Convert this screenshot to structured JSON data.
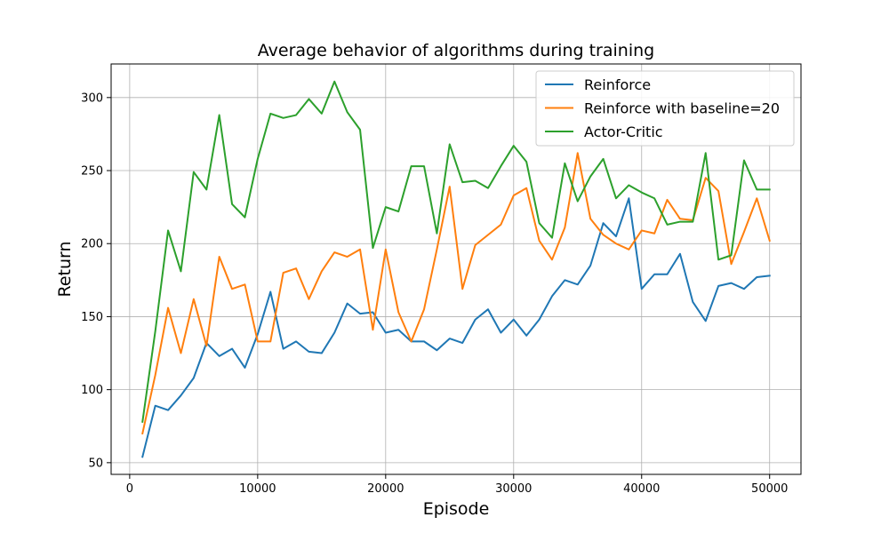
{
  "chart_data": {
    "type": "line",
    "title": "Average behavior of algorithms during training",
    "xlabel": "Episode",
    "ylabel": "Return",
    "xlim": [
      -1450,
      52450
    ],
    "ylim": [
      42,
      323
    ],
    "xticks": [
      0,
      10000,
      20000,
      30000,
      40000,
      50000
    ],
    "yticks": [
      50,
      100,
      150,
      200,
      250,
      300
    ],
    "grid": true,
    "legend_position": "top-right",
    "x": [
      1000,
      2000,
      3000,
      4000,
      5000,
      6000,
      7000,
      8000,
      9000,
      10000,
      11000,
      12000,
      13000,
      14000,
      15000,
      16000,
      17000,
      18000,
      19000,
      20000,
      21000,
      22000,
      23000,
      24000,
      25000,
      26000,
      27000,
      28000,
      29000,
      30000,
      31000,
      32000,
      33000,
      34000,
      35000,
      36000,
      37000,
      38000,
      39000,
      40000,
      41000,
      42000,
      43000,
      44000,
      45000,
      46000,
      47000,
      48000,
      49000,
      50000
    ],
    "series": [
      {
        "name": "Reinforce",
        "color": "#1f77b4",
        "values": [
          54,
          89,
          86,
          96,
          108,
          132,
          123,
          128,
          115,
          138,
          167,
          128,
          133,
          126,
          125,
          139,
          159,
          152,
          153,
          139,
          141,
          133,
          133,
          127,
          135,
          132,
          148,
          155,
          139,
          148,
          137,
          148,
          164,
          175,
          172,
          185,
          214,
          205,
          231,
          169,
          179,
          179,
          193,
          160,
          147,
          171,
          173,
          169,
          177,
          178
        ]
      },
      {
        "name": "Reinforce with baseline=20",
        "color": "#ff7f0e",
        "values": [
          70,
          110,
          156,
          125,
          162,
          130,
          191,
          169,
          172,
          133,
          133,
          180,
          183,
          162,
          181,
          194,
          191,
          196,
          141,
          196,
          153,
          133,
          155,
          196,
          239,
          169,
          199,
          206,
          213,
          233,
          238,
          202,
          189,
          211,
          262,
          217,
          206,
          200,
          196,
          209,
          207,
          230,
          217,
          216,
          245,
          236,
          186,
          208,
          231,
          202
        ]
      },
      {
        "name": "Actor-Critic",
        "color": "#2ca02c",
        "values": [
          78,
          140,
          209,
          181,
          249,
          237,
          288,
          227,
          218,
          258,
          289,
          286,
          288,
          299,
          289,
          311,
          290,
          278,
          197,
          225,
          222,
          253,
          253,
          207,
          268,
          242,
          243,
          238,
          253,
          267,
          256,
          214,
          204,
          255,
          229,
          246,
          258,
          231,
          240,
          235,
          231,
          213,
          215,
          215,
          262,
          189,
          192,
          257,
          237,
          237
        ]
      }
    ]
  }
}
